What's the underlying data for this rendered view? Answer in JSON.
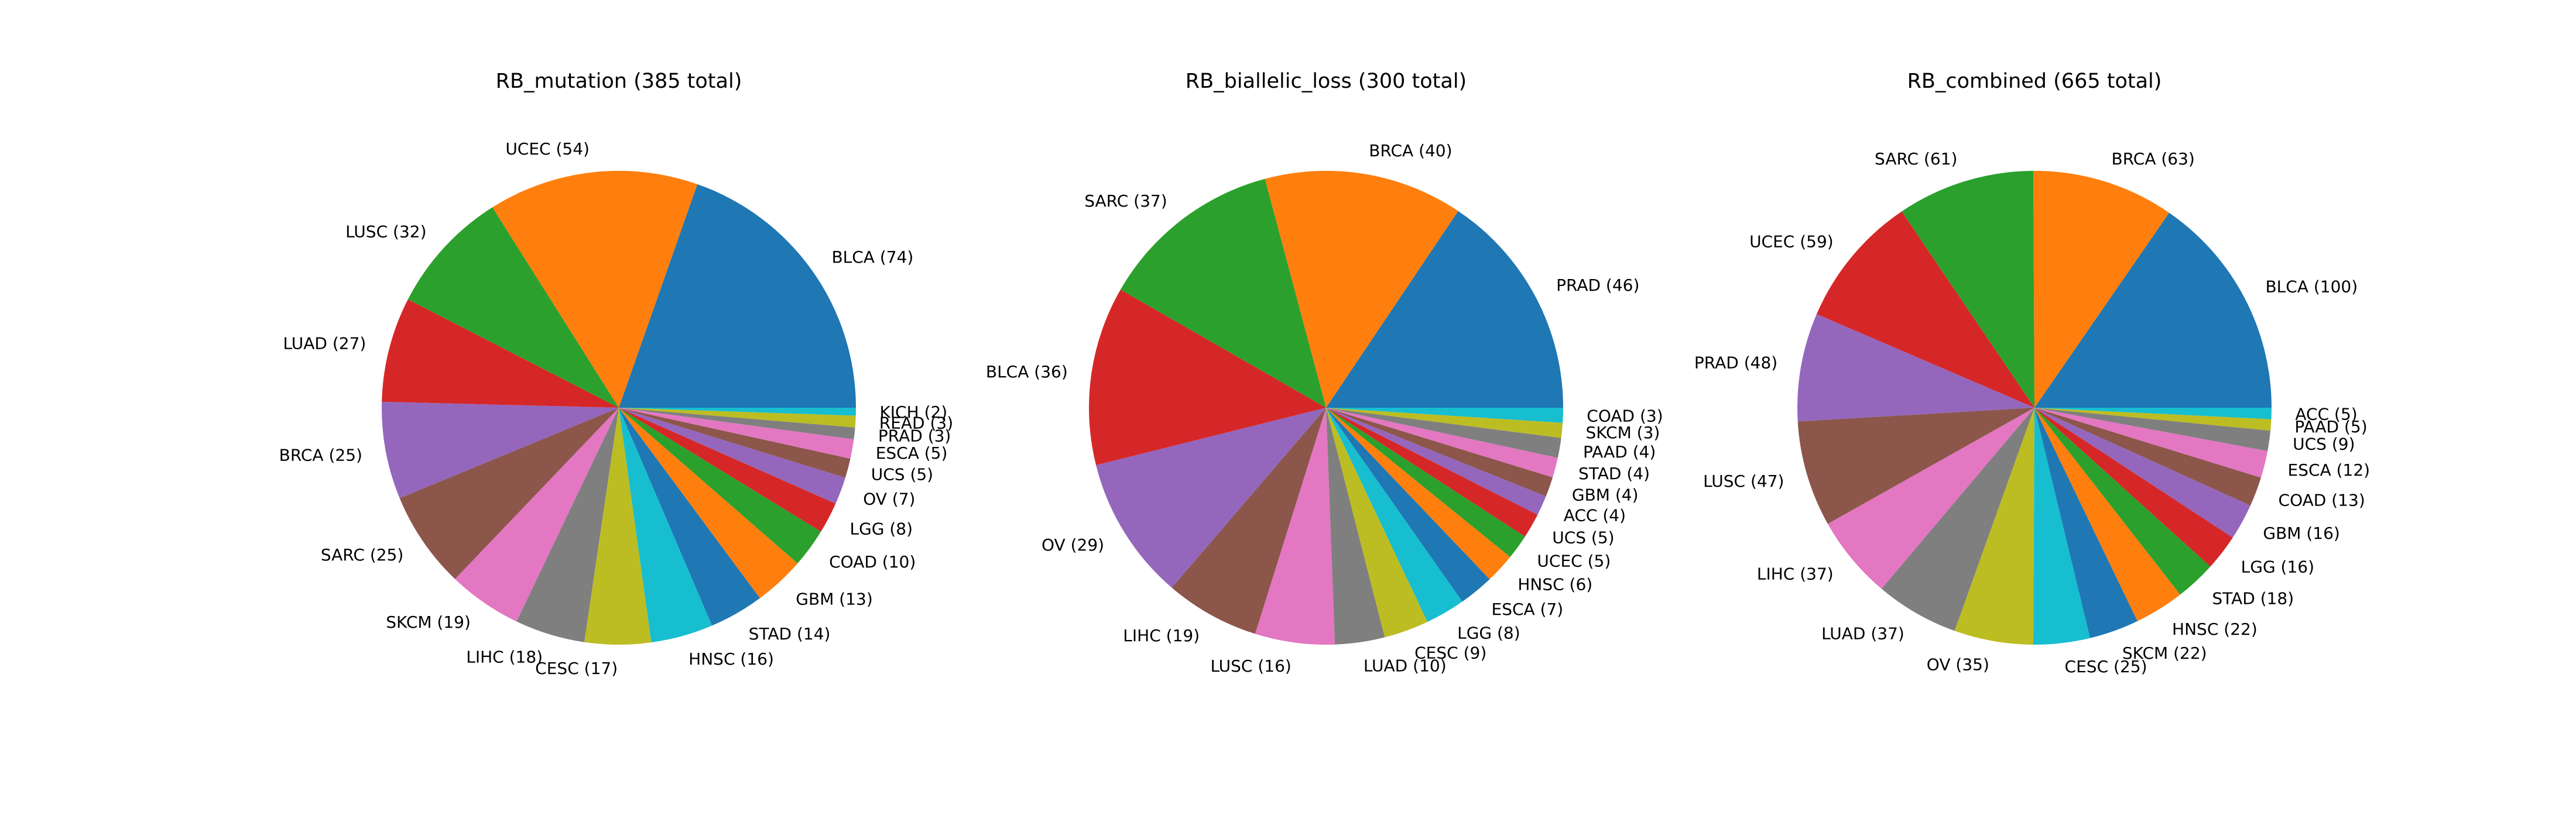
{
  "chart_data": [
    {
      "type": "pie",
      "title": "RB_mutation (385 total)",
      "labels": [
        "BLCA (74)",
        "UCEC (54)",
        "LUSC (32)",
        "LUAD (27)",
        "BRCA (25)",
        "SARC (25)",
        "SKCM (19)",
        "LIHC (18)",
        "CESC (17)",
        "HNSC (16)",
        "STAD (14)",
        "GBM (13)",
        "COAD (10)",
        "LGG (8)",
        "OV (7)",
        "UCS (5)",
        "ESCA (5)",
        "PRAD (3)",
        "READ (3)",
        "KICH (2)"
      ],
      "values": [
        74,
        54,
        32,
        27,
        25,
        25,
        19,
        18,
        17,
        16,
        14,
        13,
        10,
        8,
        7,
        5,
        5,
        3,
        3,
        2
      ]
    },
    {
      "type": "pie",
      "title": "RB_biallelic_loss (300 total)",
      "labels": [
        "PRAD (46)",
        "BRCA (40)",
        "SARC (37)",
        "BLCA (36)",
        "OV (29)",
        "LIHC (19)",
        "LUSC (16)",
        "LUAD (10)",
        "CESC (9)",
        "LGG (8)",
        "ESCA (7)",
        "HNSC (6)",
        "UCEC (5)",
        "UCS (5)",
        "ACC (4)",
        "GBM (4)",
        "STAD (4)",
        "PAAD (4)",
        "SKCM (3)",
        "COAD (3)"
      ],
      "values": [
        46,
        40,
        37,
        36,
        29,
        19,
        16,
        10,
        9,
        8,
        7,
        6,
        5,
        5,
        4,
        4,
        4,
        4,
        3,
        3
      ]
    },
    {
      "type": "pie",
      "title": "RB_combined (665 total)",
      "labels": [
        "BLCA (100)",
        "BRCA (63)",
        "SARC (61)",
        "UCEC (59)",
        "PRAD (48)",
        "LUSC (47)",
        "LIHC (37)",
        "LUAD (37)",
        "OV (35)",
        "CESC (25)",
        "SKCM (22)",
        "HNSC (22)",
        "STAD (18)",
        "LGG (16)",
        "GBM (16)",
        "COAD (13)",
        "ESCA (12)",
        "UCS (9)",
        "PAAD (5)",
        "ACC (5)"
      ],
      "values": [
        100,
        63,
        61,
        59,
        48,
        47,
        37,
        37,
        35,
        25,
        22,
        22,
        18,
        16,
        16,
        13,
        12,
        9,
        5,
        5
      ]
    }
  ],
  "colors": [
    "#1f77b4",
    "#ff7f0e",
    "#2ca02c",
    "#d62728",
    "#9467bd",
    "#8c564b",
    "#e377c2",
    "#7f7f7f",
    "#bcbd22",
    "#17becf"
  ],
  "start_angle": "0 degrees (3 o'clock), counterclockwise"
}
